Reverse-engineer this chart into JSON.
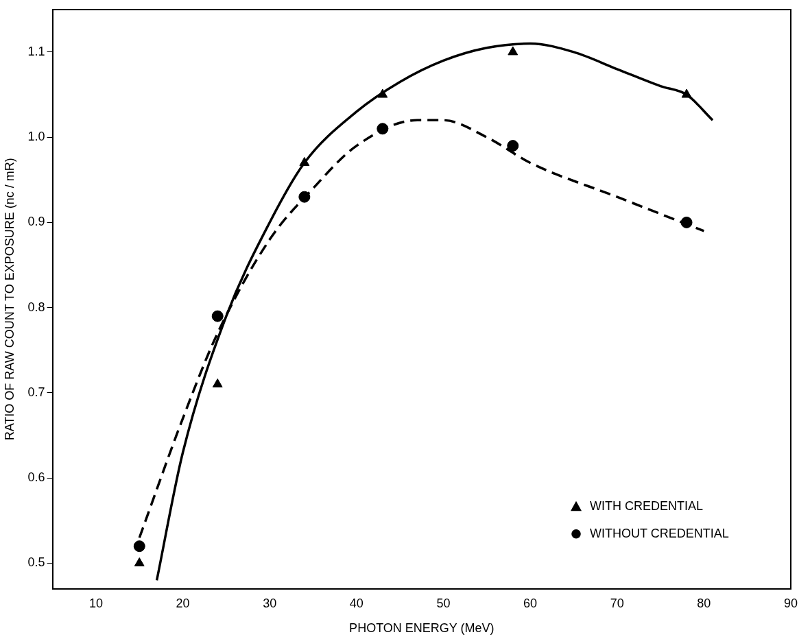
{
  "chart_data": {
    "type": "scatter",
    "xlabel": "PHOTON ENERGY (MeV)",
    "ylabel": "RATIO OF RAW COUNT TO EXPOSURE (nc / mR)",
    "xlim": [
      5,
      90
    ],
    "xticks": [
      10,
      20,
      30,
      40,
      50,
      60,
      70,
      80,
      90
    ],
    "ylim": [
      0.47,
      1.15
    ],
    "yticks": [
      0.5,
      0.6,
      0.7,
      0.8,
      0.9,
      {
        "value": 1,
        "label": "1.0"
      },
      1.1
    ],
    "grid": false,
    "legend": "bottom right",
    "series": [
      {
        "type": "scatter",
        "name": "WITH CREDENTIAL",
        "color": "#000000",
        "marker": "triangle",
        "x": [
          15,
          24,
          34,
          43,
          58,
          78
        ],
        "values": [
          0.5,
          0.71,
          0.97,
          1.05,
          1.1,
          1.05
        ]
      },
      {
        "type": "scatter",
        "name": "WITHOUT CREDENTIAL",
        "color": "#000000",
        "marker": "circle",
        "x": [
          15,
          24,
          34,
          43,
          58,
          78
        ],
        "values": [
          0.52,
          0.79,
          0.93,
          1.01,
          0.99,
          0.9
        ]
      },
      {
        "type": "line",
        "color": "#000000",
        "line_style": "solid",
        "x": [
          17,
          20,
          25,
          30,
          34,
          40,
          45,
          50,
          55,
          60,
          65,
          70,
          75,
          78,
          81
        ],
        "values": [
          0.48,
          0.63,
          0.79,
          0.9,
          0.97,
          1.03,
          1.065,
          1.09,
          1.105,
          1.11,
          1.1,
          1.08,
          1.06,
          1.05,
          1.02
        ]
      },
      {
        "type": "line",
        "color": "#000000",
        "line_style": "dashed",
        "x": [
          15,
          20,
          24,
          30,
          35,
          40,
          47,
          50,
          55,
          60,
          70,
          80
        ],
        "values": [
          0.53,
          0.67,
          0.77,
          0.88,
          0.94,
          0.99,
          1.02,
          1.02,
          1.0,
          0.97,
          0.93,
          0.89
        ]
      }
    ]
  }
}
